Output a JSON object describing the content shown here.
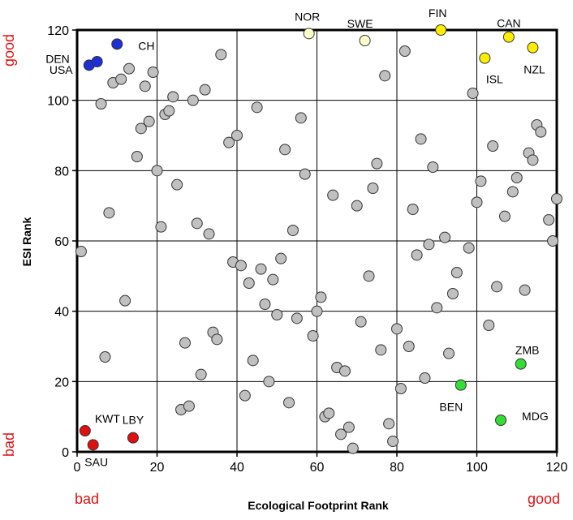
{
  "chart_data": {
    "type": "scatter",
    "xlabel": "Ecological Footprint Rank",
    "ylabel": "ESI Rank",
    "xlim": [
      0,
      120
    ],
    "ylim": [
      0,
      120
    ],
    "x_ticks": [
      0,
      20,
      40,
      60,
      80,
      100,
      120
    ],
    "y_ticks": [
      0,
      20,
      40,
      60,
      80,
      100,
      120
    ],
    "grid": true,
    "corner_labels": {
      "x_bad": "bad",
      "x_good": "good",
      "y_bad": "bad",
      "y_good": "good"
    },
    "colors": {
      "gray": "#c0c0c0",
      "blue": "#1f2fd6",
      "red": "#e01010",
      "green": "#33dd33",
      "yellow": "#ffee00",
      "light_yellow": "#ffffcc",
      "axis_text_red": "#e01010"
    },
    "labeled_points": [
      {
        "label": "DEN",
        "x": 3,
        "y": 110,
        "color": "blue"
      },
      {
        "label": "USA",
        "x": 5,
        "y": 111,
        "color": "blue"
      },
      {
        "label": "CH",
        "x": 10,
        "y": 116,
        "color": "blue"
      },
      {
        "label": "NOR",
        "x": 58,
        "y": 119,
        "color": "light_yellow"
      },
      {
        "label": "SWE",
        "x": 72,
        "y": 117,
        "color": "light_yellow"
      },
      {
        "label": "FIN",
        "x": 91,
        "y": 120,
        "color": "yellow"
      },
      {
        "label": "CAN",
        "x": 108,
        "y": 118,
        "color": "yellow"
      },
      {
        "label": "ISL",
        "x": 102,
        "y": 112,
        "color": "yellow"
      },
      {
        "label": "NZL",
        "x": 114,
        "y": 115,
        "color": "yellow"
      },
      {
        "label": "KWT",
        "x": 2,
        "y": 6,
        "color": "red"
      },
      {
        "label": "SAU",
        "x": 4,
        "y": 2,
        "color": "red"
      },
      {
        "label": "LBY",
        "x": 14,
        "y": 4,
        "color": "red"
      },
      {
        "label": "BEN",
        "x": 96,
        "y": 19,
        "color": "green"
      },
      {
        "label": "ZMB",
        "x": 111,
        "y": 25,
        "color": "green"
      },
      {
        "label": "MDG",
        "x": 106,
        "y": 9,
        "color": "green"
      }
    ],
    "points": [
      [
        1,
        57
      ],
      [
        6,
        99
      ],
      [
        8,
        68
      ],
      [
        7,
        27
      ],
      [
        9,
        105
      ],
      [
        11,
        106
      ],
      [
        13,
        109
      ],
      [
        12,
        43
      ],
      [
        15,
        84
      ],
      [
        16,
        92
      ],
      [
        17,
        104
      ],
      [
        18,
        94
      ],
      [
        19,
        108
      ],
      [
        20,
        80
      ],
      [
        21,
        64
      ],
      [
        22,
        96
      ],
      [
        23,
        97
      ],
      [
        24,
        101
      ],
      [
        25,
        76
      ],
      [
        26,
        12
      ],
      [
        27,
        31
      ],
      [
        28,
        13
      ],
      [
        29,
        100
      ],
      [
        30,
        65
      ],
      [
        31,
        22
      ],
      [
        32,
        103
      ],
      [
        33,
        62
      ],
      [
        34,
        34
      ],
      [
        35,
        32
      ],
      [
        36,
        113
      ],
      [
        38,
        88
      ],
      [
        39,
        54
      ],
      [
        40,
        90
      ],
      [
        41,
        53
      ],
      [
        42,
        16
      ],
      [
        43,
        48
      ],
      [
        44,
        26
      ],
      [
        45,
        98
      ],
      [
        46,
        52
      ],
      [
        47,
        42
      ],
      [
        48,
        20
      ],
      [
        49,
        49
      ],
      [
        50,
        39
      ],
      [
        51,
        55
      ],
      [
        52,
        86
      ],
      [
        53,
        14
      ],
      [
        54,
        63
      ],
      [
        55,
        38
      ],
      [
        56,
        95
      ],
      [
        57,
        79
      ],
      [
        59,
        33
      ],
      [
        60,
        40
      ],
      [
        61,
        44
      ],
      [
        62,
        10
      ],
      [
        63,
        11
      ],
      [
        64,
        73
      ],
      [
        65,
        24
      ],
      [
        66,
        5
      ],
      [
        67,
        23
      ],
      [
        68,
        7
      ],
      [
        69,
        1
      ],
      [
        70,
        70
      ],
      [
        71,
        37
      ],
      [
        73,
        50
      ],
      [
        74,
        75
      ],
      [
        75,
        82
      ],
      [
        76,
        29
      ],
      [
        77,
        107
      ],
      [
        78,
        8
      ],
      [
        79,
        3
      ],
      [
        80,
        35
      ],
      [
        81,
        18
      ],
      [
        82,
        114
      ],
      [
        83,
        30
      ],
      [
        84,
        69
      ],
      [
        85,
        56
      ],
      [
        86,
        89
      ],
      [
        87,
        21
      ],
      [
        88,
        59
      ],
      [
        89,
        81
      ],
      [
        90,
        41
      ],
      [
        92,
        61
      ],
      [
        93,
        28
      ],
      [
        94,
        45
      ],
      [
        95,
        51
      ],
      [
        98,
        58
      ],
      [
        99,
        102
      ],
      [
        100,
        71
      ],
      [
        101,
        77
      ],
      [
        103,
        36
      ],
      [
        104,
        87
      ],
      [
        105,
        47
      ],
      [
        107,
        67
      ],
      [
        109,
        74
      ],
      [
        110,
        78
      ],
      [
        112,
        46
      ],
      [
        113,
        85
      ],
      [
        114,
        83
      ],
      [
        115,
        93
      ],
      [
        116,
        91
      ],
      [
        118,
        66
      ],
      [
        119,
        60
      ],
      [
        120,
        72
      ]
    ]
  }
}
